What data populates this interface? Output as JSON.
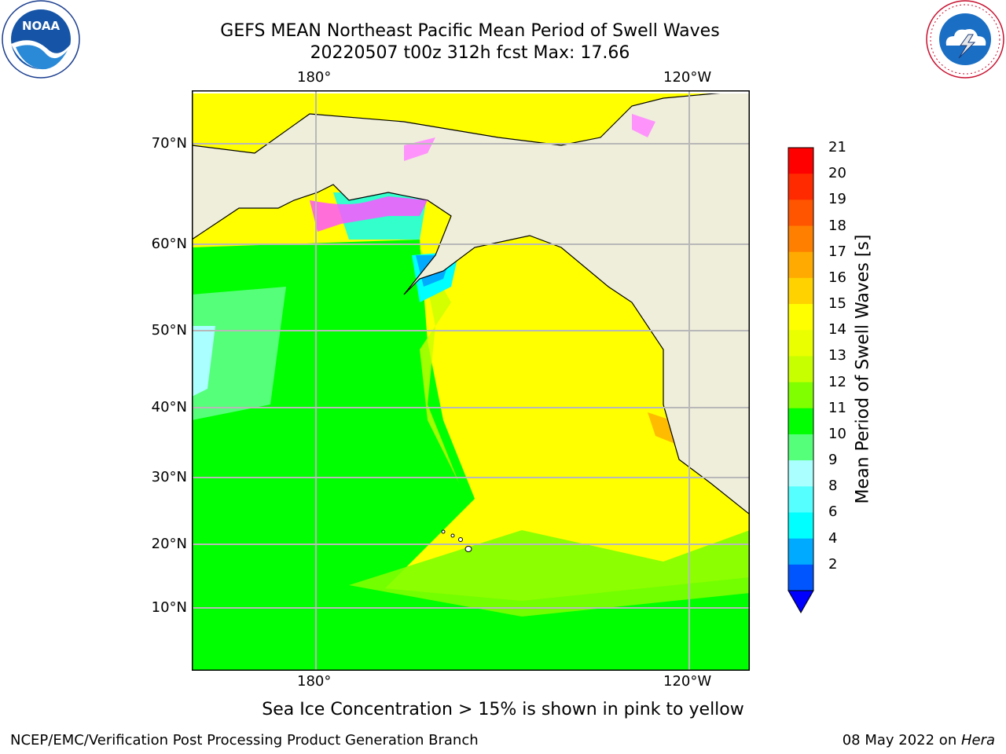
{
  "header": {
    "title": "GEFS MEAN Northeast Pacific Mean Period of Swell Waves",
    "subtitle": "20220507 t00z 312h fcst   Max: 17.66"
  },
  "map": {
    "lon_labels_top": [
      "180°",
      "120°W"
    ],
    "lon_labels_bottom": [
      "180°",
      "120°W"
    ],
    "lat_labels": [
      "70°N",
      "60°N",
      "50°N",
      "40°N",
      "30°N",
      "20°N",
      "10°N"
    ],
    "land_color": "#efeedb",
    "gridline_color": "#b8b8b8"
  },
  "colorbar": {
    "label": "Mean Period of Swell Waves [s]",
    "ticks": [
      "21",
      "20",
      "19",
      "18",
      "17",
      "16",
      "15",
      "14",
      "13",
      "12",
      "11",
      "10",
      "9",
      "8",
      "6",
      "4",
      "2"
    ],
    "colors_top_to_bottom": [
      "#ff0000",
      "#ff2a00",
      "#ff5500",
      "#ff7f00",
      "#ffaa00",
      "#ffd200",
      "#ffff00",
      "#eaff00",
      "#c8ff00",
      "#7fff00",
      "#00ff00",
      "#55ff7a",
      "#aaffff",
      "#55ffff",
      "#00ffff",
      "#00aaff",
      "#0055ff"
    ],
    "extend_color": "#0000ff"
  },
  "note": "Sea Ice Concentration > 15% is shown in pink to yellow",
  "footer": {
    "left": "NCEP/EMC/Verification Post Processing Product Generation Branch",
    "right_date": "08 May 2022 on ",
    "right_host": "Hera"
  },
  "logos": {
    "noaa": "NOAA",
    "nws": "NATIONAL WEATHER SERVICE"
  }
}
